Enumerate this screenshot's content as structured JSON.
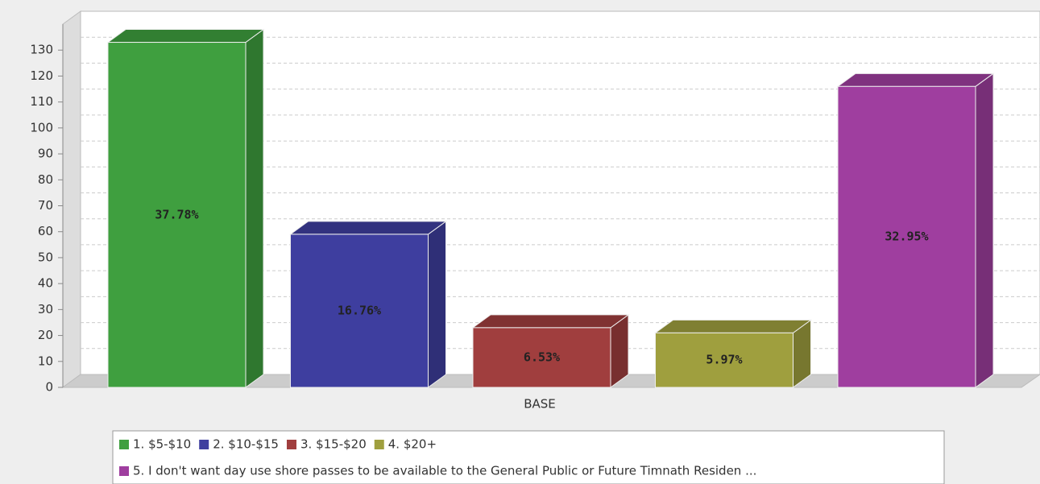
{
  "chart_data": {
    "type": "bar3d",
    "categories": [
      "BASE"
    ],
    "series": [
      {
        "name": "1. $5-$10",
        "color": "#3f9f3f",
        "values": [
          133
        ],
        "data_labels": [
          "37.78%"
        ]
      },
      {
        "name": "2. $10-$15",
        "color": "#3e3e9f",
        "values": [
          59
        ],
        "data_labels": [
          "16.76%"
        ]
      },
      {
        "name": "3. $15-$20",
        "color": "#a03e3e",
        "values": [
          23
        ],
        "data_labels": [
          "6.53%"
        ]
      },
      {
        "name": "4. $20+",
        "color": "#9f9f3e",
        "values": [
          21
        ],
        "data_labels": [
          "5.97%"
        ]
      },
      {
        "name": "5. I don't want day use shore passes to be available to the General Public or Future Timnath Residen ...",
        "color": "#9f3e9f",
        "values": [
          116
        ],
        "data_labels": [
          "32.95%"
        ]
      }
    ],
    "ylim": [
      0,
      140
    ],
    "yticks": [
      0,
      10,
      20,
      30,
      40,
      50,
      60,
      70,
      80,
      90,
      100,
      110,
      120,
      130
    ],
    "grid": true
  }
}
